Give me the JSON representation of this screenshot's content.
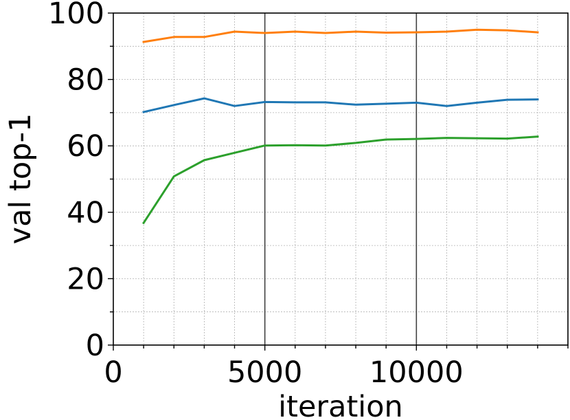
{
  "chart_data": {
    "type": "line",
    "xlabel": "iteration",
    "ylabel": "val top-1",
    "xlim": [
      0,
      15000
    ],
    "ylim": [
      0,
      100
    ],
    "x_ticks": [
      0,
      5000,
      10000
    ],
    "x_tick_labels": [
      "0",
      "5000",
      "10000"
    ],
    "y_ticks": [
      0,
      20,
      40,
      60,
      80,
      100
    ],
    "y_tick_labels": [
      "0",
      "20",
      "40",
      "60",
      "80",
      "100"
    ],
    "grid": true,
    "vertical_markers": [
      5000,
      10000
    ],
    "x": [
      1000,
      2000,
      3000,
      4000,
      5000,
      6000,
      7000,
      8000,
      9000,
      10000,
      11000,
      12000,
      13000,
      14000
    ],
    "series": [
      {
        "color": "#ff7f0e",
        "values": [
          91.3,
          92.8,
          92.8,
          94.4,
          94.0,
          94.4,
          94.0,
          94.4,
          94.1,
          94.2,
          94.4,
          95.0,
          94.8,
          94.2
        ]
      },
      {
        "color": "#1f77b4",
        "values": [
          70.2,
          72.3,
          74.3,
          72.0,
          73.2,
          73.1,
          73.1,
          72.4,
          72.7,
          73.0,
          72.0,
          73.0,
          73.9,
          74.0
        ]
      },
      {
        "color": "#2ca02c",
        "values": [
          36.8,
          50.8,
          55.7,
          57.9,
          60.1,
          60.2,
          60.1,
          60.9,
          61.9,
          62.1,
          62.4,
          62.3,
          62.2,
          62.8
        ]
      }
    ]
  }
}
